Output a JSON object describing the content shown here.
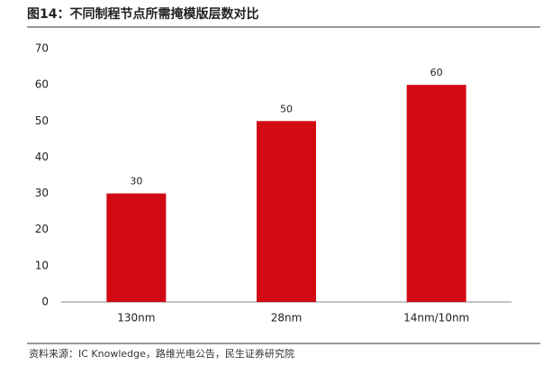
{
  "chart_data": {
    "type": "bar",
    "title": "图14：不同制程节点所需掩模版层数对比",
    "categories": [
      "130nm",
      "28nm",
      "14nm/10nm"
    ],
    "values": [
      30,
      50,
      60
    ],
    "color": "#d10a14",
    "ylim": [
      0,
      70
    ],
    "yticks": [
      0,
      10,
      20,
      30,
      40,
      50,
      60,
      70
    ],
    "source": "资料来源：IC Knowledge，路维光电公告，民生证券研究院"
  }
}
